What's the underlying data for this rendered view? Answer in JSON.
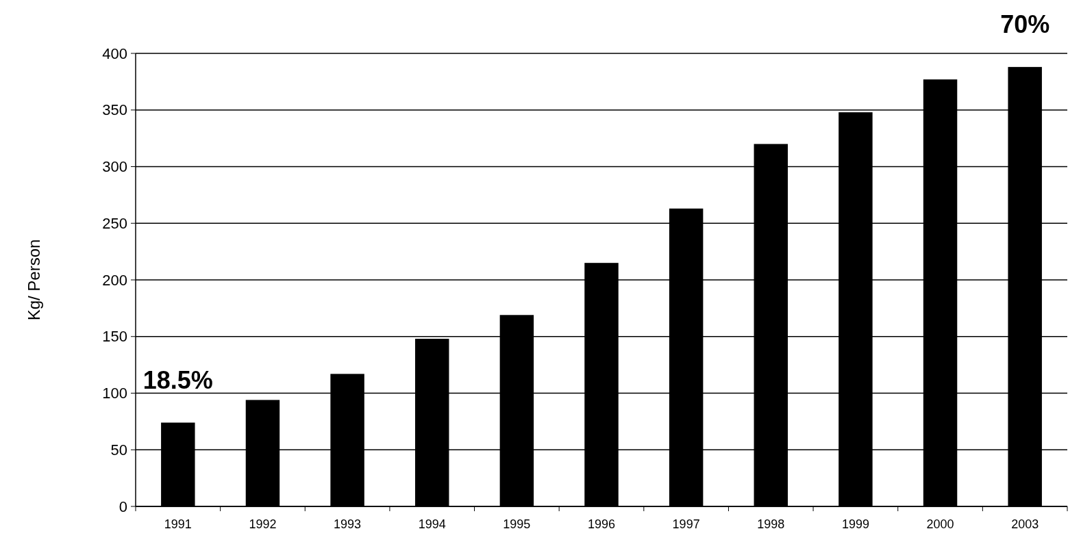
{
  "chart_data": {
    "type": "bar",
    "ylabel": "Kg/ Person",
    "categories": [
      "1991",
      "1992",
      "1993",
      "1994",
      "1995",
      "1996",
      "1997",
      "1998",
      "1999",
      "2000",
      "2003"
    ],
    "values": [
      74,
      94,
      117,
      148,
      169,
      215,
      263,
      320,
      348,
      377,
      388
    ],
    "color": "#000000",
    "ylim": [
      0,
      400
    ],
    "yticks": [
      0,
      50,
      100,
      150,
      200,
      250,
      300,
      350,
      400
    ],
    "grid": "y",
    "annotations": [
      {
        "text": "18.5%",
        "x": "1991",
        "y": 74
      },
      {
        "text": "70%",
        "x": "2003",
        "y": 388
      }
    ]
  }
}
